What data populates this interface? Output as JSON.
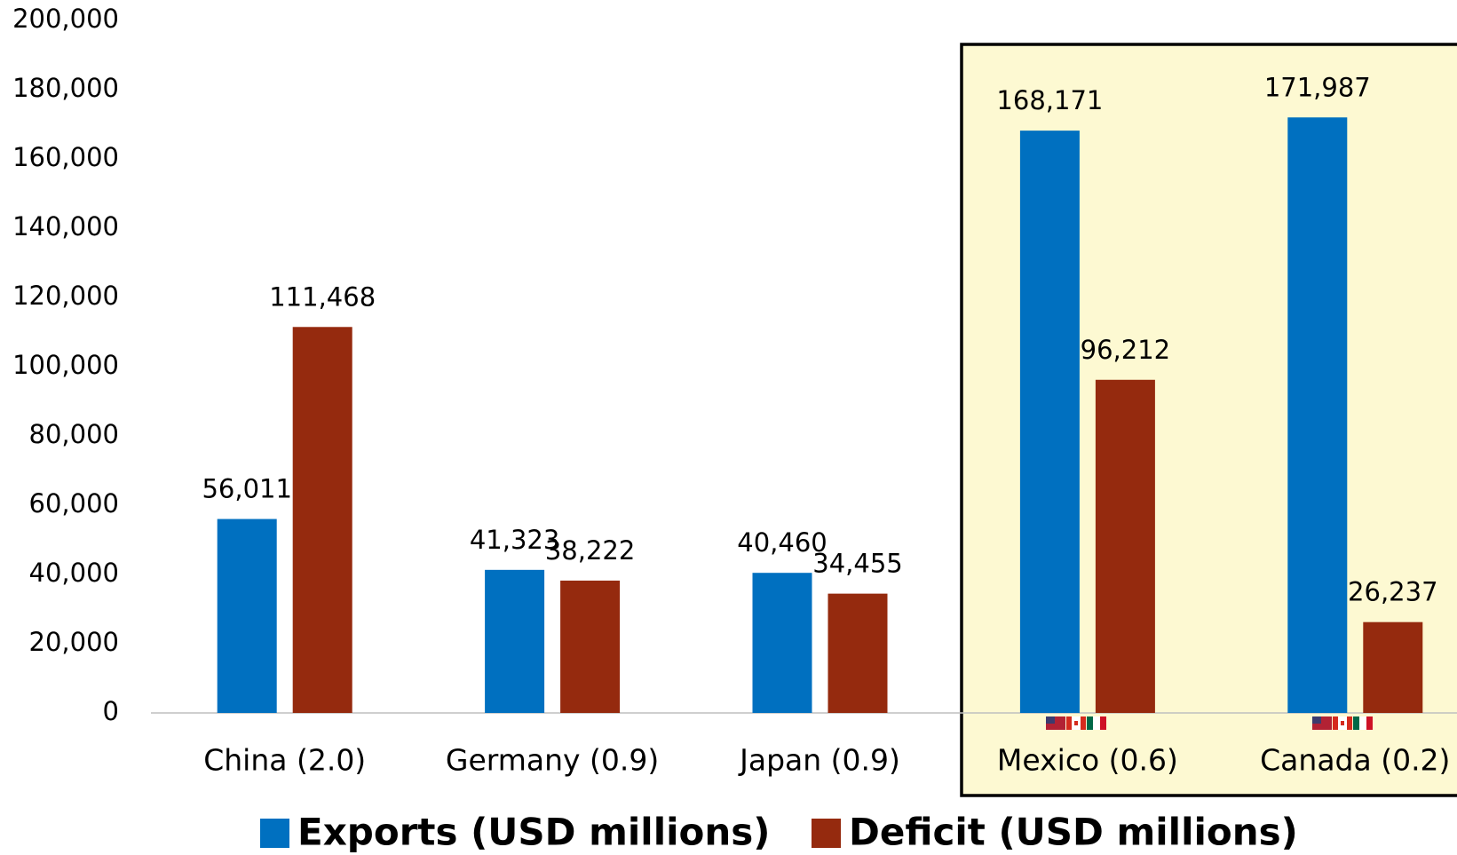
{
  "chart_data": {
    "type": "bar",
    "categories": [
      "China (2.0)",
      "Germany (0.9)",
      "Japan (0.9)",
      "Mexico (0.6)",
      "Canada (0.2)"
    ],
    "series": [
      {
        "name": "Exports (USD millions)",
        "color": "#0070c0",
        "values": [
          56011,
          41323,
          40460,
          168171,
          171987
        ],
        "value_labels": [
          "56,011",
          "41,323",
          "40,460",
          "168,171",
          "171,987"
        ]
      },
      {
        "name": "Deficit (USD millions)",
        "color": "#952a0e",
        "values": [
          111468,
          38222,
          34455,
          96212,
          26237
        ],
        "value_labels": [
          "111,468",
          "38,222",
          "34,455",
          "96,212",
          "26,237"
        ]
      }
    ],
    "ylim": [
      0,
      200000
    ],
    "yticks": [
      0,
      {
        "value": 20000,
        "label": "20,000"
      },
      {
        "value": 40000,
        "label": "40,000"
      },
      {
        "value": 60000,
        "label": "60,000"
      },
      {
        "value": 80000,
        "label": "80,000"
      },
      {
        "value": 100000,
        "label": "100,000"
      },
      {
        "value": 120000,
        "label": "120,000"
      },
      {
        "value": 140000,
        "label": "140,000"
      },
      {
        "value": 160000,
        "label": "160,000"
      },
      {
        "value": 180000,
        "label": "180,000"
      },
      {
        "value": 200000,
        "label": "200,000"
      }
    ],
    "grid": false,
    "legend": "bottom"
  }
}
